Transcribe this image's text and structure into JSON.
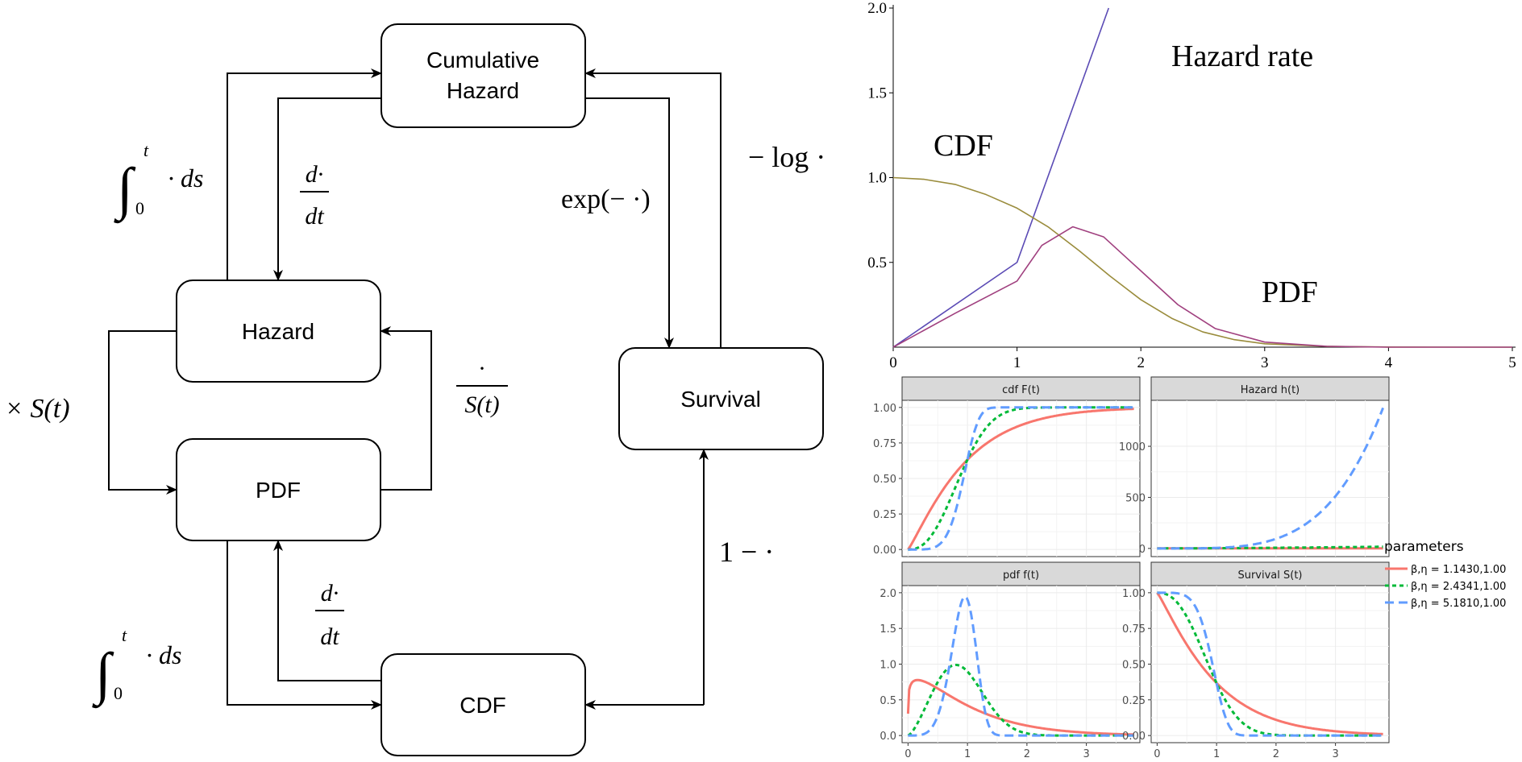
{
  "diagram": {
    "nodes": {
      "cumhaz_line1": "Cumulative",
      "cumhaz_line2": "Hazard",
      "hazard": "Hazard",
      "pdf": "PDF",
      "survival": "Survival",
      "cdf": "CDF"
    },
    "edge_labels": {
      "integral_top": "∫",
      "integral_upper": "t",
      "integral_lower": "0",
      "integral_body": "· ds",
      "deriv_num": "d·",
      "deriv_den": "dt",
      "exp_neg": "exp(− ·)",
      "neg_log": "− log ·",
      "times_s": "× S(t)",
      "over_s_num": "·",
      "over_s_den": "S(t)",
      "one_minus": "1 − ·"
    }
  },
  "chart_data": [
    {
      "type": "line",
      "title": "",
      "xlim": [
        0,
        5
      ],
      "ylim": [
        0,
        2.0
      ],
      "x_ticks": [
        "0",
        "1",
        "2",
        "3",
        "4",
        "5"
      ],
      "y_ticks": [
        "0.5",
        "1.0",
        "1.5",
        "2.0"
      ],
      "annotations": [
        "Hazard rate",
        "CDF",
        "PDF"
      ],
      "colors": {
        "hazard": "#5b4bb5",
        "survival": "#9a8c3c",
        "pdf": "#a0407f"
      },
      "series": [
        {
          "key": "hazard",
          "x": [
            0,
            1,
            1.74
          ],
          "y": [
            0,
            0.5,
            2.0
          ]
        },
        {
          "key": "survival",
          "x": [
            0,
            0.25,
            0.5,
            0.75,
            1.0,
            1.25,
            1.5,
            1.75,
            2.0,
            2.25,
            2.5,
            2.75,
            3.0,
            3.5,
            4.0,
            5.0
          ],
          "y": [
            1.0,
            0.99,
            0.96,
            0.9,
            0.82,
            0.71,
            0.57,
            0.42,
            0.28,
            0.17,
            0.09,
            0.045,
            0.02,
            0.005,
            0.001,
            0.0
          ]
        },
        {
          "key": "pdf",
          "x": [
            0,
            0.5,
            1.0,
            1.2,
            1.45,
            1.7,
            2.0,
            2.3,
            2.6,
            3.0,
            3.5,
            4.0,
            5.0
          ],
          "y": [
            0,
            0.2,
            0.39,
            0.6,
            0.71,
            0.65,
            0.45,
            0.25,
            0.11,
            0.03,
            0.005,
            0.0,
            0.0
          ]
        }
      ]
    },
    {
      "type": "line",
      "facets": [
        {
          "title": "cdf F(t)",
          "ylim": [
            -0.05,
            1.05
          ],
          "y_ticks": [
            "0.00",
            "0.25",
            "0.50",
            "0.75",
            "1.00"
          ],
          "y_vals": [
            0,
            0.25,
            0.5,
            0.75,
            1.0
          ]
        },
        {
          "title": "Hazard h(t)",
          "ylim": [
            -80,
            1450
          ],
          "y_ticks": [
            "0",
            "500",
            "1000"
          ],
          "y_vals": [
            0,
            500,
            1000
          ]
        },
        {
          "title": "pdf f(t)",
          "ylim": [
            -0.1,
            2.1
          ],
          "y_ticks": [
            "0.0",
            "0.5",
            "1.0",
            "1.5",
            "2.0"
          ],
          "y_vals": [
            0,
            0.5,
            1.0,
            1.5,
            2.0
          ]
        },
        {
          "title": "Survival S(t)",
          "ylim": [
            -0.05,
            1.05
          ],
          "y_ticks": [
            "0.00",
            "0.25",
            "0.50",
            "0.75",
            "1.00"
          ],
          "y_vals": [
            0,
            0.25,
            0.5,
            0.75,
            1.0
          ]
        }
      ],
      "xlim": [
        -0.1,
        3.9
      ],
      "x_ticks": [
        "0",
        "1",
        "2",
        "3"
      ],
      "x_vals": [
        0,
        1,
        2,
        3
      ],
      "legend": {
        "title": "parameters",
        "position": "right",
        "entries": [
          {
            "label": "β,η = 1.1430,1.00",
            "color": "#f8766d",
            "dash": "solid",
            "beta": 1.143
          },
          {
            "label": "β,η = 2.4341,1.00",
            "color": "#00ba38",
            "dash": "dotted",
            "beta": 2.4341
          },
          {
            "label": "β,η = 5.1810,1.00",
            "color": "#619cff",
            "dash": "dashed",
            "beta": 5.181
          }
        ]
      },
      "t_range": [
        0.0,
        3.8
      ],
      "eta": 1.0
    }
  ]
}
